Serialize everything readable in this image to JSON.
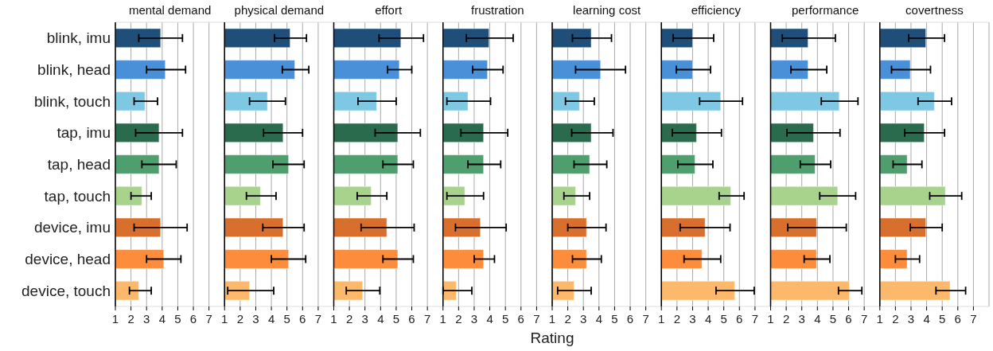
{
  "chart_data": [
    {
      "type": "bar",
      "orientation": "horizontal",
      "title": "mental demand",
      "categories": [
        "blink, imu",
        "blink, head",
        "blink, touch",
        "tap, imu",
        "tap, head",
        "tap, touch",
        "device, imu",
        "device, head",
        "device, touch"
      ],
      "values": [
        3.9,
        4.2,
        2.9,
        3.8,
        3.8,
        2.7,
        3.9,
        4.1,
        2.5
      ],
      "errors": [
        [
          2.5,
          5.3
        ],
        [
          3.0,
          5.5
        ],
        [
          2.2,
          3.7
        ],
        [
          2.3,
          5.3
        ],
        [
          2.7,
          4.9
        ],
        [
          2.0,
          3.3
        ],
        [
          2.2,
          5.6
        ],
        [
          3.0,
          5.2
        ],
        [
          1.9,
          3.3
        ]
      ],
      "colors": [
        "#1f4e79",
        "#4a90d9",
        "#7ec8e3",
        "#2a6b4e",
        "#4f9e6e",
        "#a8d38c",
        "#d96f2c",
        "#fd8d3c",
        "#fdb96b"
      ],
      "xlim": [
        1,
        8
      ],
      "xticks": [
        1,
        2,
        3,
        4,
        5,
        6,
        7
      ],
      "grid": "x"
    },
    {
      "type": "bar",
      "orientation": "horizontal",
      "title": "physical demand",
      "categories": [
        "blink, imu",
        "blink, head",
        "blink, touch",
        "tap, imu",
        "tap, head",
        "tap, touch",
        "device, imu",
        "device, head",
        "device, touch"
      ],
      "values": [
        5.2,
        5.5,
        3.75,
        4.75,
        5.1,
        3.3,
        4.75,
        5.1,
        2.6
      ],
      "errors": [
        [
          4.2,
          6.25
        ],
        [
          4.7,
          6.4
        ],
        [
          2.6,
          4.9
        ],
        [
          3.5,
          6.0
        ],
        [
          4.1,
          6.1
        ],
        [
          2.4,
          4.3
        ],
        [
          3.45,
          6.1
        ],
        [
          4.0,
          6.2
        ],
        [
          1.2,
          4.15
        ]
      ],
      "colors": [
        "#1f4e79",
        "#4a90d9",
        "#7ec8e3",
        "#2a6b4e",
        "#4f9e6e",
        "#a8d38c",
        "#d96f2c",
        "#fd8d3c",
        "#fdb96b"
      ],
      "xlim": [
        1,
        8
      ],
      "xticks": [
        1,
        2,
        3,
        4,
        5,
        6,
        7
      ],
      "grid": "x",
      "tick_labels": "x"
    },
    {
      "type": "bar",
      "orientation": "horizontal",
      "title": "effort",
      "categories": [
        "blink, imu",
        "blink, head",
        "blink, touch",
        "tap, imu",
        "tap, head",
        "tap, touch",
        "device, imu",
        "device, head",
        "device, touch"
      ],
      "values": [
        5.3,
        5.2,
        3.75,
        5.1,
        5.1,
        3.4,
        4.4,
        5.1,
        2.85
      ],
      "errors": [
        [
          3.9,
          6.75
        ],
        [
          4.45,
          6.0
        ],
        [
          2.55,
          5.0
        ],
        [
          3.65,
          6.55
        ],
        [
          4.15,
          6.1
        ],
        [
          2.5,
          4.4
        ],
        [
          2.75,
          6.15
        ],
        [
          4.15,
          6.1
        ],
        [
          1.8,
          3.95
        ]
      ],
      "colors": [
        "#1f4e79",
        "#4a90d9",
        "#7ec8e3",
        "#2a6b4e",
        "#4f9e6e",
        "#a8d38c",
        "#d96f2c",
        "#fd8d3c",
        "#fdb96b"
      ],
      "xlim": [
        1,
        8
      ],
      "xticks": [
        1,
        2,
        3,
        4,
        5,
        6,
        7
      ],
      "grid": "x",
      "tick_labels": "x"
    },
    {
      "type": "bar",
      "orientation": "horizontal",
      "title": "frustration",
      "categories": [
        "blink, imu",
        "blink, head",
        "blink, touch",
        "tap, imu",
        "tap, head",
        "tap, touch",
        "device, imu",
        "device, head",
        "device, touch"
      ],
      "values": [
        3.95,
        3.85,
        2.6,
        3.6,
        3.6,
        2.4,
        3.4,
        3.6,
        1.85
      ],
      "errors": [
        [
          2.5,
          5.5
        ],
        [
          2.9,
          4.85
        ],
        [
          1.25,
          4.05
        ],
        [
          2.15,
          5.15
        ],
        [
          2.6,
          4.7
        ],
        [
          1.25,
          3.6
        ],
        [
          1.8,
          5.05
        ],
        [
          3.0,
          4.3
        ],
        [
          1.0,
          2.85
        ]
      ],
      "colors": [
        "#1f4e79",
        "#4a90d9",
        "#7ec8e3",
        "#2a6b4e",
        "#4f9e6e",
        "#a8d38c",
        "#d96f2c",
        "#fd8d3c",
        "#fdb96b"
      ],
      "xlim": [
        1,
        8
      ],
      "xticks": [
        1,
        2,
        3,
        4,
        5,
        6,
        7
      ],
      "grid": "x",
      "tick_labels": "x",
      "xlabel": "Rating"
    },
    {
      "type": "bar",
      "orientation": "horizontal",
      "title": "learning cost",
      "categories": [
        "blink, imu",
        "blink, head",
        "blink, touch",
        "tap, imu",
        "tap, head",
        "tap, touch",
        "device, imu",
        "device, head",
        "device, touch"
      ],
      "values": [
        3.5,
        4.1,
        2.75,
        3.5,
        3.4,
        2.5,
        3.2,
        3.2,
        2.4
      ],
      "errors": [
        [
          2.3,
          4.8
        ],
        [
          2.5,
          5.7
        ],
        [
          1.85,
          3.7
        ],
        [
          2.25,
          4.9
        ],
        [
          2.4,
          4.5
        ],
        [
          1.75,
          3.4
        ],
        [
          2.0,
          4.45
        ],
        [
          2.3,
          4.15
        ],
        [
          1.35,
          3.5
        ]
      ],
      "colors": [
        "#1f4e79",
        "#4a90d9",
        "#7ec8e3",
        "#2a6b4e",
        "#4f9e6e",
        "#a8d38c",
        "#d96f2c",
        "#fd8d3c",
        "#fdb96b"
      ],
      "xlim": [
        1,
        8
      ],
      "xticks": [
        1,
        2,
        3,
        4,
        5,
        6,
        7
      ],
      "grid": "x",
      "tick_labels": "x"
    },
    {
      "type": "bar",
      "orientation": "horizontal",
      "title": "efficiency",
      "categories": [
        "blink, imu",
        "blink, head",
        "blink, touch",
        "tap, imu",
        "tap, head",
        "tap, touch",
        "device, imu",
        "device, head",
        "device, touch"
      ],
      "values": [
        3.0,
        3.0,
        4.8,
        3.25,
        3.15,
        5.45,
        3.8,
        3.6,
        5.7
      ],
      "errors": [
        [
          1.75,
          4.35
        ],
        [
          1.95,
          4.15
        ],
        [
          3.45,
          6.2
        ],
        [
          1.7,
          4.85
        ],
        [
          2.05,
          4.3
        ],
        [
          4.7,
          6.3
        ],
        [
          2.2,
          5.4
        ],
        [
          2.45,
          4.8
        ],
        [
          4.5,
          6.95
        ]
      ],
      "colors": [
        "#1f4e79",
        "#4a90d9",
        "#7ec8e3",
        "#2a6b4e",
        "#4f9e6e",
        "#a8d38c",
        "#d96f2c",
        "#fd8d3c",
        "#fdb96b"
      ],
      "xlim": [
        1,
        8
      ],
      "xticks": [
        1,
        2,
        3,
        4,
        5,
        6,
        7
      ],
      "grid": "x",
      "tick_labels": "x"
    },
    {
      "type": "bar",
      "orientation": "horizontal",
      "title": "performance",
      "categories": [
        "blink, imu",
        "blink, head",
        "blink, touch",
        "tap, imu",
        "tap, head",
        "tap, touch",
        "device, imu",
        "device, head",
        "device, touch"
      ],
      "values": [
        3.4,
        3.4,
        5.4,
        3.75,
        3.85,
        5.3,
        3.95,
        3.95,
        6.05
      ],
      "errors": [
        [
          1.75,
          5.15
        ],
        [
          2.3,
          4.6
        ],
        [
          4.25,
          6.6
        ],
        [
          2.05,
          5.45
        ],
        [
          2.9,
          4.85
        ],
        [
          4.15,
          6.45
        ],
        [
          2.1,
          5.85
        ],
        [
          3.15,
          4.8
        ],
        [
          5.35,
          6.85
        ]
      ],
      "colors": [
        "#1f4e79",
        "#4a90d9",
        "#7ec8e3",
        "#2a6b4e",
        "#4f9e6e",
        "#a8d38c",
        "#d96f2c",
        "#fd8d3c",
        "#fdb96b"
      ],
      "xlim": [
        1,
        8
      ],
      "xticks": [
        1,
        2,
        3,
        4,
        5,
        6,
        7
      ],
      "grid": "x",
      "tick_labels": "x"
    },
    {
      "type": "bar",
      "orientation": "horizontal",
      "title": "covertness",
      "categories": [
        "blink, imu",
        "blink, head",
        "blink, touch",
        "tap, imu",
        "tap, head",
        "tap, touch",
        "device, imu",
        "device, head",
        "device, touch"
      ],
      "values": [
        3.95,
        2.95,
        4.5,
        3.85,
        2.75,
        5.2,
        3.95,
        2.75,
        5.5
      ],
      "errors": [
        [
          2.85,
          5.15
        ],
        [
          1.75,
          4.25
        ],
        [
          3.45,
          5.6
        ],
        [
          2.6,
          5.15
        ],
        [
          1.85,
          3.7
        ],
        [
          4.2,
          6.25
        ],
        [
          2.95,
          5.0
        ],
        [
          2.0,
          3.55
        ],
        [
          4.6,
          6.5
        ]
      ],
      "colors": [
        "#1f4e79",
        "#4a90d9",
        "#7ec8e3",
        "#2a6b4e",
        "#4f9e6e",
        "#a8d38c",
        "#d96f2c",
        "#fd8d3c",
        "#fdb96b"
      ],
      "xlim": [
        1,
        8
      ],
      "xticks": [
        1,
        2,
        3,
        4,
        5,
        6,
        7
      ],
      "grid": "x",
      "tick_labels": "x"
    }
  ]
}
